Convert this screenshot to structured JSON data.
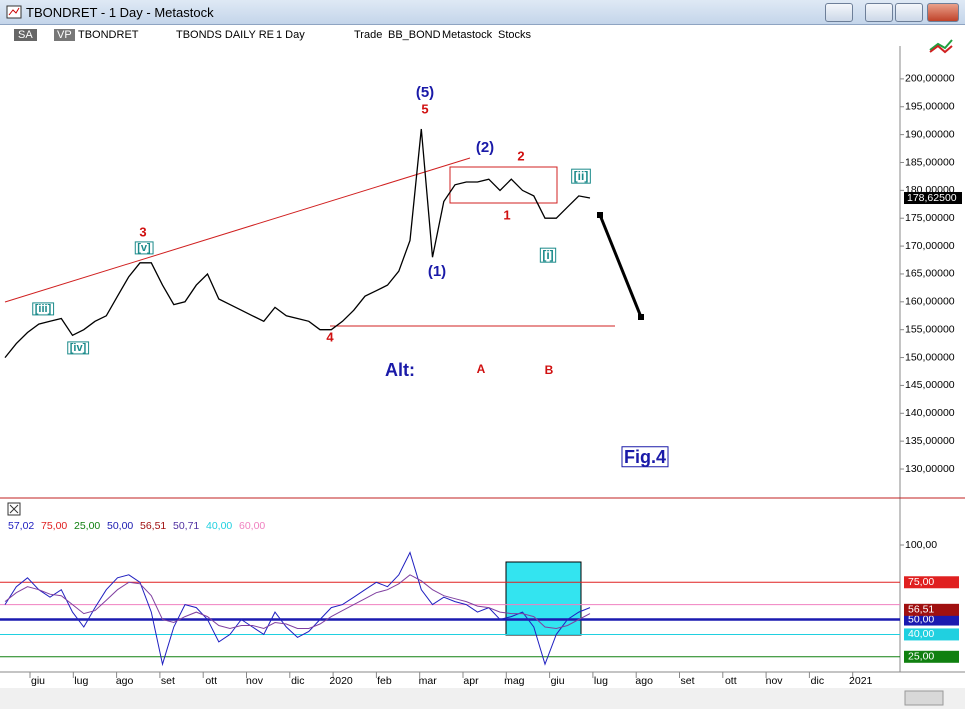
{
  "window": {
    "title": "TBONDRET - 1 Day - Metastock"
  },
  "toolbar": [
    "SA",
    "VP",
    "TBONDRET",
    "TBONDS DAILY RE",
    "1 Day",
    "Trade",
    "BB_BOND",
    "Metastock",
    "Stocks"
  ],
  "time_axis": [
    "giu",
    "lug",
    "ago",
    "set",
    "ott",
    "nov",
    "dic",
    "2020",
    "feb",
    "mar",
    "apr",
    "mag",
    "giu",
    "lug",
    "ago",
    "set",
    "ott",
    "nov",
    "dic",
    "2021"
  ],
  "chart_data": [
    {
      "type": "line",
      "series": [
        {
          "color": "#000000",
          "values": [
            150,
            152.5,
            154.5,
            156,
            156.5,
            157,
            154,
            155,
            156.5,
            157.5,
            161,
            164.5,
            167,
            167,
            163,
            159.5,
            160,
            163,
            165,
            160.5,
            159.5,
            158.5,
            157.5,
            156.5,
            159,
            157.5,
            157,
            156.5,
            155,
            155,
            156.5,
            158.5,
            161,
            162,
            163,
            165.5,
            171,
            191,
            168,
            178,
            181,
            181.5,
            181.5,
            182,
            180,
            182,
            180,
            179,
            175,
            175,
            177,
            179,
            178.625
          ]
        }
      ],
      "ylim": [
        124.8,
        205.9
      ],
      "yticks": [
        {
          "value": 130,
          "label": "130,00000"
        },
        {
          "value": 135,
          "label": "135,00000"
        },
        {
          "value": 140,
          "label": "140,00000"
        },
        {
          "value": 145,
          "label": "145,00000"
        },
        {
          "value": 150,
          "label": "150,00000"
        },
        {
          "value": 155,
          "label": "155,00000"
        },
        {
          "value": 160,
          "label": "160,00000"
        },
        {
          "value": 165,
          "label": "165,00000"
        },
        {
          "value": 170,
          "label": "170,00000"
        },
        {
          "value": 175,
          "label": "175,00000"
        },
        {
          "value": 180,
          "label": "180,00000"
        },
        {
          "value": 185,
          "label": "185,00000"
        },
        {
          "value": 190,
          "label": "190,00000"
        },
        {
          "value": 195,
          "label": "195,00000"
        },
        {
          "value": 200,
          "label": "200,00000"
        }
      ],
      "last_value": {
        "value": 178.625,
        "label": "178,62500"
      },
      "annotations": [
        {
          "text": "(5)",
          "color": "#1a1aa8"
        },
        {
          "text": "5",
          "color": "#d01010"
        },
        {
          "text": "(2)",
          "color": "#1a1aa8"
        },
        {
          "text": "2",
          "color": "#d01010"
        },
        {
          "text": "[ii]",
          "color": "#1a8a8a"
        },
        {
          "text": "3",
          "color": "#d01010"
        },
        {
          "text": "[v]",
          "color": "#1a8a8a"
        },
        {
          "text": "[iii]",
          "color": "#1a8a8a"
        },
        {
          "text": "[iv]",
          "color": "#1a8a8a"
        },
        {
          "text": "4",
          "color": "#d01010"
        },
        {
          "text": "(1)",
          "color": "#1a1aa8"
        },
        {
          "text": "1",
          "color": "#d01010"
        },
        {
          "text": "[i]",
          "color": "#1a8a8a"
        },
        {
          "text": "Alt:",
          "color": "#1a1aa8"
        },
        {
          "text": "A",
          "color": "#d01010"
        },
        {
          "text": "B",
          "color": "#d01010"
        },
        {
          "text": "Fig.4",
          "color": "#1a1aa8"
        }
      ]
    },
    {
      "type": "line",
      "series": [
        {
          "color": "#2020c0",
          "values": [
            60,
            72,
            78,
            70,
            65,
            70,
            55,
            45,
            58,
            70,
            78,
            80,
            75,
            55,
            20,
            45,
            60,
            58,
            50,
            35,
            40,
            50,
            45,
            40,
            55,
            45,
            38,
            42,
            50,
            58,
            60,
            65,
            70,
            75,
            72,
            80,
            95,
            70,
            60,
            65,
            62,
            60,
            55,
            58,
            50,
            52,
            55,
            45,
            20,
            40,
            50,
            55,
            58
          ]
        },
        {
          "color": "#8040a0",
          "values": [
            62,
            68,
            72,
            70,
            67,
            66,
            60,
            54,
            56,
            63,
            70,
            75,
            74,
            66,
            50,
            48,
            52,
            55,
            52,
            46,
            44,
            46,
            46,
            44,
            48,
            47,
            44,
            44,
            47,
            52,
            56,
            60,
            64,
            68,
            70,
            74,
            80,
            76,
            70,
            66,
            64,
            62,
            59,
            58,
            55,
            54,
            54,
            52,
            45,
            44,
            46,
            50,
            54
          ]
        }
      ],
      "ylim": [
        14.8,
        130.2
      ],
      "yticks": [
        {
          "value": 100,
          "label": "100,00"
        }
      ],
      "legend": [
        {
          "value": 57.02,
          "label": "57,02",
          "color": "#2020c0",
          "level": false,
          "box": false
        },
        {
          "value": 75,
          "label": "75,00",
          "color": "#e02020",
          "level": true,
          "box": true
        },
        {
          "value": 25,
          "label": "25,00",
          "color": "#108010",
          "level": true,
          "box": true
        },
        {
          "value": 50,
          "label": "50,00",
          "color": "#1a1ab0",
          "level": true,
          "box": true
        },
        {
          "value": 56.51,
          "label": "56,51",
          "color": "#a01010",
          "level": false,
          "box": true
        },
        {
          "value": 50.71,
          "label": "50,71",
          "color": "#5030a0",
          "level": false,
          "box": false
        },
        {
          "value": 40,
          "label": "40,00",
          "color": "#20d0e0",
          "level": true,
          "box": true
        },
        {
          "value": 60,
          "label": "60,00",
          "color": "#f080c0",
          "level": true,
          "box": false
        }
      ]
    }
  ]
}
